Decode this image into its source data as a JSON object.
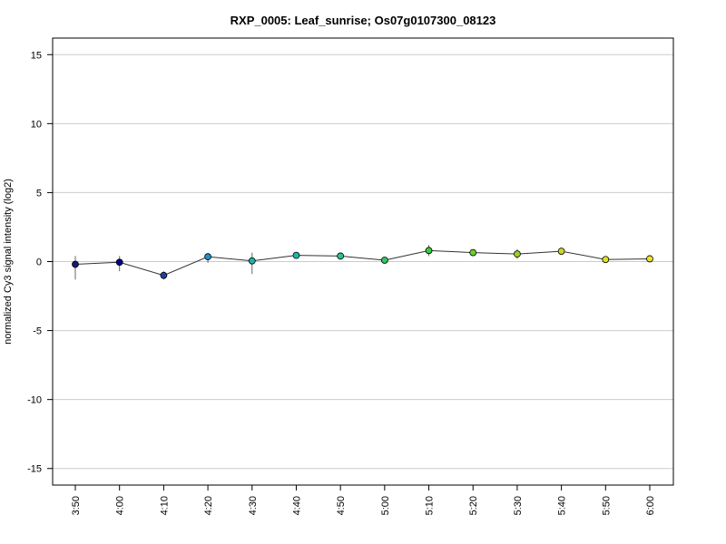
{
  "chart_data": {
    "type": "line",
    "title": "RXP_0005: Leaf_sunrise; Os07g0107300_08123",
    "xlabel": "",
    "ylabel": "normalized Cy3 signal intensity (log2)",
    "categories": [
      "3:50",
      "4:00",
      "4:10",
      "4:20",
      "4:30",
      "4:40",
      "4:50",
      "5:00",
      "5:10",
      "5:20",
      "5:30",
      "5:40",
      "5:50",
      "6:00"
    ],
    "values": [
      -0.2,
      -0.05,
      -1.0,
      0.35,
      0.05,
      0.45,
      0.4,
      0.1,
      0.8,
      0.65,
      0.55,
      0.75,
      0.15,
      0.2
    ],
    "error_low": [
      -1.3,
      -0.7,
      -1.3,
      -0.1,
      -0.9,
      0.3,
      0.25,
      -0.1,
      0.4,
      0.5,
      0.2,
      0.55,
      0.05,
      0.05
    ],
    "error_high": [
      0.4,
      0.4,
      -0.7,
      0.6,
      0.65,
      0.6,
      0.55,
      0.3,
      1.2,
      0.8,
      0.9,
      1.0,
      0.3,
      0.35
    ],
    "point_colors": [
      "#191970",
      "#00008b",
      "#1e3f9f",
      "#1e90c8",
      "#20b2aa",
      "#1fb8a0",
      "#2ec48a",
      "#33c466",
      "#3ecb3e",
      "#6ad02e",
      "#9ad024",
      "#c8d626",
      "#e0e020",
      "#f0e02a"
    ],
    "yticks": [
      -15,
      -10,
      -5,
      0,
      5,
      10,
      15
    ],
    "ylim": [
      -16.2,
      16.2
    ],
    "grid": true,
    "line_color": "#333333"
  }
}
